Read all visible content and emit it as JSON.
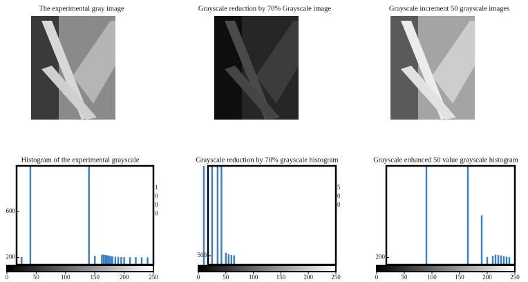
{
  "images": [
    {
      "title": "The experimental gray image"
    },
    {
      "title": "Grayscale reduction by 70% Grayscale image"
    },
    {
      "title": "Grayscale increment 50 grayscale images"
    }
  ],
  "chart_data": [
    {
      "type": "bar",
      "title": "Histogram of the experimental grayscale",
      "color": "#3a7dc2",
      "x": [
        25,
        40,
        140,
        150,
        162,
        165,
        168,
        170,
        172,
        175,
        178,
        180,
        185,
        190,
        195,
        200,
        210,
        220,
        230,
        240
      ],
      "values": [
        205,
        994,
        994,
        215,
        225,
        225,
        222,
        220,
        218,
        215,
        212,
        210,
        208,
        206,
        205,
        204,
        203,
        203,
        202,
        202
      ],
      "xlim": [
        0,
        250
      ],
      "xticks": [
        0,
        50,
        100,
        150,
        200,
        250
      ],
      "ylim": [
        138,
        994
      ],
      "yticks": [
        200,
        600
      ],
      "annotations": [
        "1",
        "0",
        "0",
        "0"
      ]
    },
    {
      "type": "bar",
      "title": "Grayscale reduction by 70% grayscale histogram",
      "color": "#3a7dc2",
      "x": [
        10,
        25,
        35,
        42,
        50,
        55,
        60,
        65
      ],
      "values": [
        1100,
        1100,
        1100,
        1100,
        520,
        510,
        505,
        502
      ],
      "xlim": [
        0,
        250
      ],
      "xticks": [
        0,
        50,
        100,
        150,
        200,
        250
      ],
      "ylim": [
        440,
        1100
      ],
      "yticks": [
        500
      ],
      "annotations": [
        "5",
        "0",
        "0"
      ]
    },
    {
      "type": "bar",
      "title": "Grayscale enhanced 50 value grayscale histogram",
      "color": "#3a7dc2",
      "x": [
        90,
        165,
        190,
        200,
        210,
        215,
        220,
        225,
        230,
        235,
        240
      ],
      "values": [
        994,
        994,
        566,
        205,
        215,
        225,
        222,
        218,
        212,
        208,
        204
      ],
      "xlim": [
        0,
        250
      ],
      "xticks": [
        0,
        50,
        100,
        150,
        200,
        250
      ],
      "ylim": [
        138,
        994
      ],
      "yticks": [
        200
      ],
      "annotations": []
    }
  ]
}
